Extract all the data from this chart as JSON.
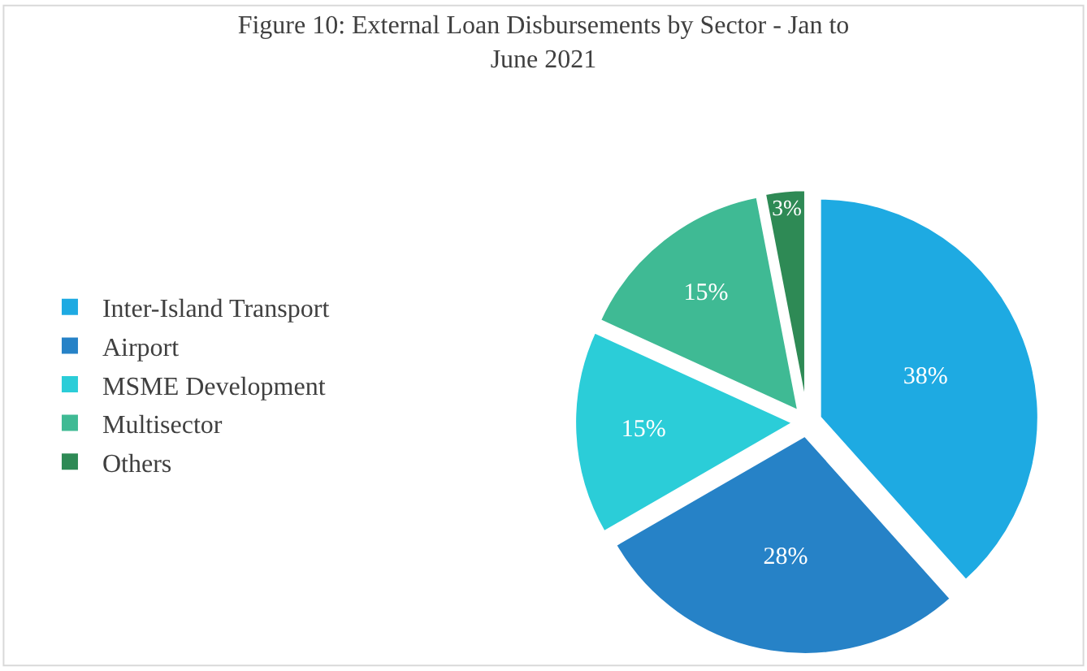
{
  "chart_data": {
    "type": "pie",
    "title": "Figure 10: External Loan Disbursements by Sector - Jan to June 2021",
    "categories": [
      "Inter-Island Transport",
      "Airport",
      "MSME Development",
      "Multisector",
      "Others"
    ],
    "values": [
      38,
      28,
      15,
      15,
      3
    ],
    "colors": [
      "#1eaae2",
      "#2682c7",
      "#2bcdd8",
      "#3fba94",
      "#2e8a55"
    ],
    "value_labels": [
      "38%",
      "28%",
      "15%",
      "15%",
      "3%"
    ],
    "legend": "left"
  }
}
